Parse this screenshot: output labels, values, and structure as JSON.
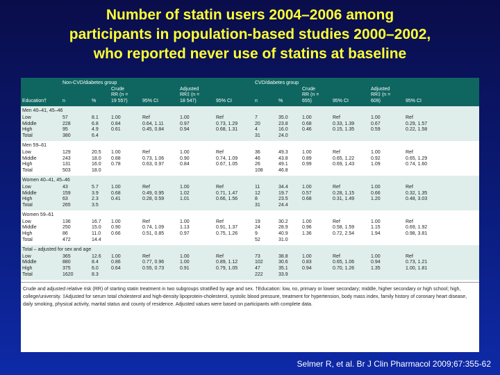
{
  "title": {
    "line1": "Number of statin users 2004–2006 among",
    "line2": "participants in population-based studies 2000–2002,",
    "line3": "who reported never use of statins at baseline"
  },
  "table": {
    "group_headers": {
      "non_cvd": "Non-CVD/diabetes group",
      "cvd": "CVD/diabetes group"
    },
    "headers": {
      "education": "Education†",
      "n": "n",
      "pct": "%",
      "crude_1": "Crude",
      "crude_2": "RR (n =",
      "crude_nc": "19 557)",
      "crude_c": "655)",
      "adj_1": "Adjusted",
      "adj_2": "RR‡ (n =",
      "adj_nc": "18 547)",
      "adj_c": "609)",
      "ci": "95% CI"
    },
    "groups": [
      {
        "label": "Men 40–41, 45–46",
        "rows": [
          [
            "Low",
            "57",
            "8.1",
            "1.00",
            "Ref",
            "1.00",
            "Ref",
            "7",
            "35.0",
            "1.00",
            "Ref",
            "1.00",
            "Ref"
          ],
          [
            "Middle",
            "228",
            "6.8",
            "0.84",
            "0.64, 1.11",
            "0.97",
            "0.73, 1.29",
            "20",
            "23.8",
            "0.68",
            "0.33, 1.39",
            "0.67",
            "0.29, 1.57"
          ],
          [
            "High",
            "95",
            "4.9",
            "0.61",
            "0.45, 0.84",
            "0.94",
            "0.68, 1.31",
            "4",
            "16.0",
            "0.46",
            "0.15, 1.35",
            "0.59",
            "0.22, 1.58"
          ],
          [
            "Total",
            "380",
            "6.4",
            "",
            "",
            "",
            "",
            "31",
            "24.0",
            "",
            "",
            "",
            ""
          ]
        ]
      },
      {
        "label": "Men 59–61",
        "rows": [
          [
            "Low",
            "129",
            "20.5",
            "1.00",
            "Ref",
            "1.00",
            "Ref",
            "36",
            "49.3",
            "1.00",
            "Ref",
            "1.00",
            "Ref"
          ],
          [
            "Middle",
            "243",
            "18.0",
            "0.88",
            "0.73, 1.06",
            "0.90",
            "0.74, 1.09",
            "46",
            "43.8",
            "0.89",
            "0.65, 1.22",
            "0.92",
            "0.65, 1.29"
          ],
          [
            "High",
            "131",
            "16.0",
            "0.78",
            "0.63, 0.97",
            "0.84",
            "0.67, 1.05",
            "26",
            "49.1",
            "0.99",
            "0.69, 1.43",
            "1.09",
            "0.74, 1.60"
          ],
          [
            "Total",
            "503",
            "18.0",
            "",
            "",
            "",
            "",
            "108",
            "46.8",
            "",
            "",
            "",
            ""
          ]
        ]
      },
      {
        "label": "Women 40–41, 45–46",
        "rows": [
          [
            "Low",
            "43",
            "5.7",
            "1.00",
            "Ref",
            "1.00",
            "Ref",
            "11",
            "34.4",
            "1.00",
            "Ref",
            "1.00",
            "Ref"
          ],
          [
            "Middle",
            "159",
            "3.9",
            "0.68",
            "0.49, 0.95",
            "1.02",
            "0.71, 1.47",
            "12",
            "19.7",
            "0.57",
            "0.28, 1.15",
            "0.66",
            "0.32, 1.35"
          ],
          [
            "High",
            "63",
            "2.3",
            "0.41",
            "0.28, 0.59",
            "1.01",
            "0.66, 1.56",
            "8",
            "23.5",
            "0.68",
            "0.31, 1.49",
            "1.20",
            "0.48, 3.03"
          ],
          [
            "Total",
            "265",
            "3.5",
            "",
            "",
            "",
            "",
            "31",
            "24.4",
            "",
            "",
            "",
            ""
          ]
        ]
      },
      {
        "label": "Women 59–61",
        "rows": [
          [
            "Low",
            "136",
            "16.7",
            "1.00",
            "Ref",
            "1.00",
            "Ref",
            "19",
            "30.2",
            "1.00",
            "Ref",
            "1.00",
            "Ref"
          ],
          [
            "Middle",
            "250",
            "15.0",
            "0.90",
            "0.74, 1.09",
            "1.13",
            "0.91, 1.37",
            "24",
            "28.9",
            "0.96",
            "0.58, 1.59",
            "1.15",
            "0.69, 1.92"
          ],
          [
            "High",
            "86",
            "11.0",
            "0.66",
            "0.51, 0.85",
            "0.97",
            "0.75, 1.26",
            "9",
            "40.9",
            "1.36",
            "0.72, 2.54",
            "1.94",
            "0.98, 3.81"
          ],
          [
            "Total",
            "472",
            "14.4",
            "",
            "",
            "",
            "",
            "52",
            "31.0",
            "",
            "",
            "",
            ""
          ]
        ]
      },
      {
        "label": "Total – adjusted for sex and age",
        "rows": [
          [
            "Low",
            "365",
            "12.6",
            "1.00",
            "Ref",
            "1.00",
            "Ref",
            "73",
            "38.8",
            "1.00",
            "Ref",
            "1.00",
            "Ref"
          ],
          [
            "Middle",
            "880",
            "8.4",
            "0.86",
            "0.77, 0.96",
            "1.00",
            "0.89, 1.12",
            "102",
            "30.6",
            "0.83",
            "0.65, 1.06",
            "0.94",
            "0.73, 1.21"
          ],
          [
            "High",
            "375",
            "6.0",
            "0.64",
            "0.55, 0.73",
            "0.91",
            "0.79, 1.05",
            "47",
            "35.1",
            "0.94",
            "0.70, 1.26",
            "1.35",
            "1.00, 1.81"
          ],
          [
            "Total",
            "1620",
            "8.3",
            "",
            "",
            "",
            "",
            "222",
            "33.9",
            "",
            "",
            "",
            ""
          ]
        ]
      }
    ],
    "footnote": "Crude and adjusted relative risk (RR) of starting statin treatment in two subgroups stratified by age and sex. †Education: low, no, primary or lower secondary; middle, higher secondary or high school; high, college/university. ‡Adjusted for serum total cholesterol and high-density lipoprotein-cholesterol, systolic blood pressure, treatment for hypertension, body mass index, family history of coronary heart disease, daily smoking, physical activity, marital status and county of residence. Adjusted values were based on participants with complete data."
  },
  "citation": "Selmer R, et al. Br J Clin Pharmacol 2009;67:355-62"
}
